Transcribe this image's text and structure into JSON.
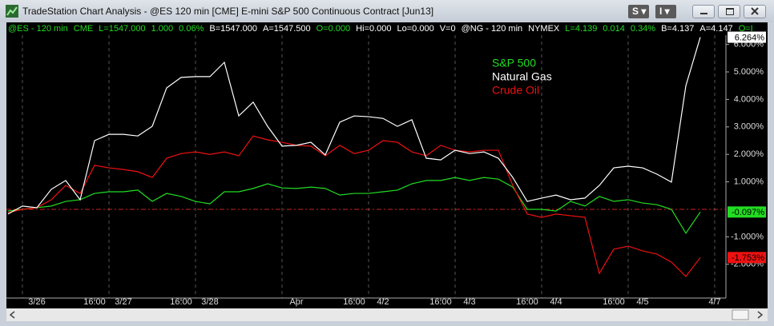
{
  "window": {
    "title": "TradeStation Chart Analysis - @ES 120 min [CME] E-mini S&P 500 Continuous Contract [Jun13]",
    "buttons": [
      "S",
      "I"
    ]
  },
  "status": [
    {
      "text": "@ES - 120 min",
      "color": "#22dd22"
    },
    {
      "text": "CME",
      "color": "#22dd22"
    },
    {
      "text": "L=1547.000",
      "color": "#22dd22"
    },
    {
      "text": "1.000",
      "color": "#22dd22"
    },
    {
      "text": "0.06%",
      "color": "#22dd22"
    },
    {
      "text": "B=1547.000",
      "color": "#ffffff"
    },
    {
      "text": "A=1547.500",
      "color": "#ffffff"
    },
    {
      "text": "O=0.000",
      "color": "#22dd22"
    },
    {
      "text": "Hi=0.000",
      "color": "#ffffff"
    },
    {
      "text": "Lo=0.000",
      "color": "#ffffff"
    },
    {
      "text": "V=0",
      "color": "#ffffff"
    },
    {
      "text": "@NG - 120 min",
      "color": "#ffffff"
    },
    {
      "text": "NYMEX",
      "color": "#ffffff"
    },
    {
      "text": "L=4.139",
      "color": "#22dd22"
    },
    {
      "text": "0.014",
      "color": "#22dd22"
    },
    {
      "text": "0.34%",
      "color": "#22dd22"
    },
    {
      "text": "B=4.137",
      "color": "#ffffff"
    },
    {
      "text": "A=4.147",
      "color": "#ffffff"
    },
    {
      "text": "O=I",
      "color": "#22dd22"
    }
  ],
  "chart_data": {
    "type": "line",
    "categories": [
      null,
      null,
      "3/26",
      null,
      null,
      null,
      "16:00",
      null,
      "3/27",
      null,
      null,
      null,
      "16:00",
      null,
      "3/28",
      null,
      null,
      null,
      null,
      null,
      "Apr",
      null,
      null,
      null,
      "16:00",
      null,
      "4/2",
      null,
      null,
      null,
      "16:00",
      null,
      "4/3",
      null,
      null,
      null,
      "16:00",
      null,
      "4/4",
      null,
      null,
      null,
      "16:00",
      null,
      "4/5",
      null,
      null,
      null,
      null,
      "4/7"
    ],
    "series": [
      {
        "name": "S&P 500",
        "color": "#22dd22",
        "values": [
          -0.06,
          0,
          0.06,
          0.12,
          0.29,
          0.35,
          0.58,
          0.64,
          0.64,
          0.7,
          0.29,
          0.58,
          0.47,
          0.29,
          0.2,
          0.64,
          0.64,
          0.76,
          0.93,
          0.78,
          0.76,
          0.81,
          0.76,
          0.52,
          0.58,
          0.58,
          0.64,
          0.7,
          0.93,
          1.05,
          1.05,
          1.16,
          1.05,
          1.16,
          1.1,
          0.81,
          0,
          0,
          -0.06,
          0.29,
          0.12,
          0.47,
          0.29,
          0.35,
          0.23,
          0.17,
          0,
          -0.87,
          -0.097,
          null
        ],
        "end_label": {
          "value": -0.097,
          "label": "-0.097%"
        }
      },
      {
        "name": "Natural Gas",
        "color": "#ffffff",
        "values": [
          -0.17,
          0.12,
          0.06,
          0.73,
          1.05,
          0.35,
          2.5,
          2.73,
          2.73,
          2.67,
          3.02,
          4.42,
          4.8,
          4.83,
          4.83,
          5.35,
          3.4,
          3.9,
          3.02,
          2.3,
          2.33,
          2.44,
          1.98,
          3.17,
          3.4,
          3.37,
          3.31,
          3.02,
          3.26,
          1.86,
          1.8,
          2.15,
          2.03,
          2.09,
          1.86,
          1.16,
          0.29,
          0.41,
          0.52,
          0.35,
          0.41,
          0.87,
          1.51,
          1.57,
          1.51,
          1.28,
          0.99,
          4.5,
          6.264,
          null
        ],
        "end_label": {
          "value": 6.264,
          "label": "6.264%"
        }
      },
      {
        "name": "Crude Oil",
        "color": "#ee1111",
        "values": [
          -0.12,
          0,
          0.06,
          0.35,
          0.87,
          0.58,
          1.6,
          1.51,
          1.45,
          1.37,
          1.16,
          1.86,
          2.03,
          2.09,
          2,
          2.09,
          1.95,
          2.67,
          2.53,
          2.44,
          2.33,
          2.3,
          1.95,
          2.33,
          2.03,
          2.15,
          2.5,
          2.44,
          2.09,
          1.95,
          2.33,
          2.15,
          2.09,
          2.15,
          2.15,
          0.87,
          -0.17,
          -0.29,
          -0.17,
          -0.23,
          -0.29,
          -2.33,
          -1.45,
          -1.34,
          -1.51,
          -1.63,
          -1.92,
          -2.44,
          -1.753,
          null
        ],
        "end_label": {
          "value": -1.753,
          "label": "-1.753%"
        }
      }
    ],
    "ylim": [
      -3,
      6.3
    ],
    "yticks": [
      {
        "value": -2,
        "label": "-2.000%"
      },
      {
        "value": -1,
        "label": "-1.000%"
      },
      {
        "value": 1,
        "label": "1.000%"
      },
      {
        "value": 2,
        "label": "2.000%"
      },
      {
        "value": 3,
        "label": "3.000%"
      },
      {
        "value": 4,
        "label": "4.000%"
      },
      {
        "value": 5,
        "label": "5.000%"
      },
      {
        "value": 6,
        "label": "6.000%"
      }
    ],
    "reference_line": 0,
    "reference_color": "#cc2222",
    "background": "#000000"
  }
}
